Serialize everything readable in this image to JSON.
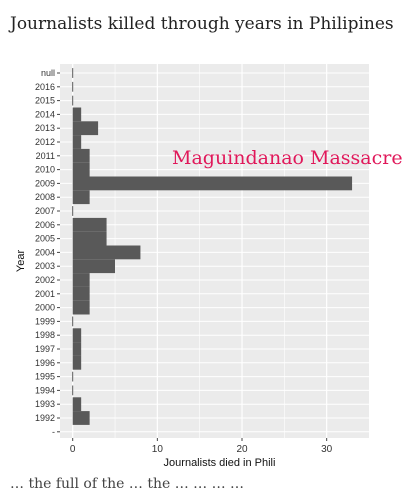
{
  "page": {
    "title": "Journalists killed through years in Philipines",
    "footer_fragment": "… the full of the … the … … … …"
  },
  "chart_data": {
    "type": "bar",
    "orientation": "horizontal",
    "categories": [
      "1992",
      "1993",
      "1994",
      "1995",
      "1996",
      "1997",
      "1998",
      "1999",
      "2000",
      "2001",
      "2002",
      "2003",
      "2004",
      "2005",
      "2006",
      "2007",
      "2008",
      "2009",
      "2010",
      "2011",
      "2012",
      "2013",
      "2014",
      "2015",
      "2016",
      "null"
    ],
    "values": [
      2,
      1,
      0,
      0,
      1,
      1,
      1,
      0,
      2,
      2,
      2,
      5,
      8,
      4,
      4,
      0,
      2,
      33,
      2,
      2,
      1,
      3,
      1,
      0,
      0,
      0
    ],
    "xlabel": "Journalists died in Phili",
    "ylabel": "Year",
    "xlim": [
      -1.5,
      35
    ],
    "xticks": [
      0,
      10,
      20,
      30
    ],
    "extra_y_tick": "-",
    "grid": true,
    "annotation": {
      "text": "Maguindanao Massacre",
      "color": "#e0185a"
    },
    "colors": {
      "bar": "#595959",
      "panel": "#ebebeb",
      "grid": "#ffffff"
    }
  }
}
